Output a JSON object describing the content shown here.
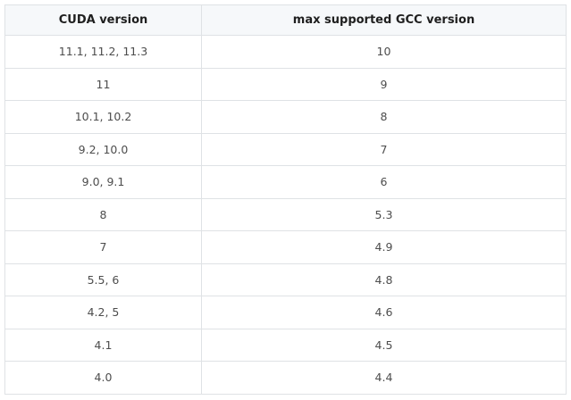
{
  "table": {
    "headers": [
      "CUDA version",
      "max supported GCC version"
    ],
    "rows": [
      [
        "11.1, 11.2, 11.3",
        "10"
      ],
      [
        "11",
        "9"
      ],
      [
        "10.1, 10.2",
        "8"
      ],
      [
        "9.2, 10.0",
        "7"
      ],
      [
        "9.0, 9.1",
        "6"
      ],
      [
        "8",
        "5.3"
      ],
      [
        "7",
        "4.9"
      ],
      [
        "5.5, 6",
        "4.8"
      ],
      [
        "4.2, 5",
        "4.6"
      ],
      [
        "4.1",
        "4.5"
      ],
      [
        "4.0",
        "4.4"
      ]
    ]
  }
}
